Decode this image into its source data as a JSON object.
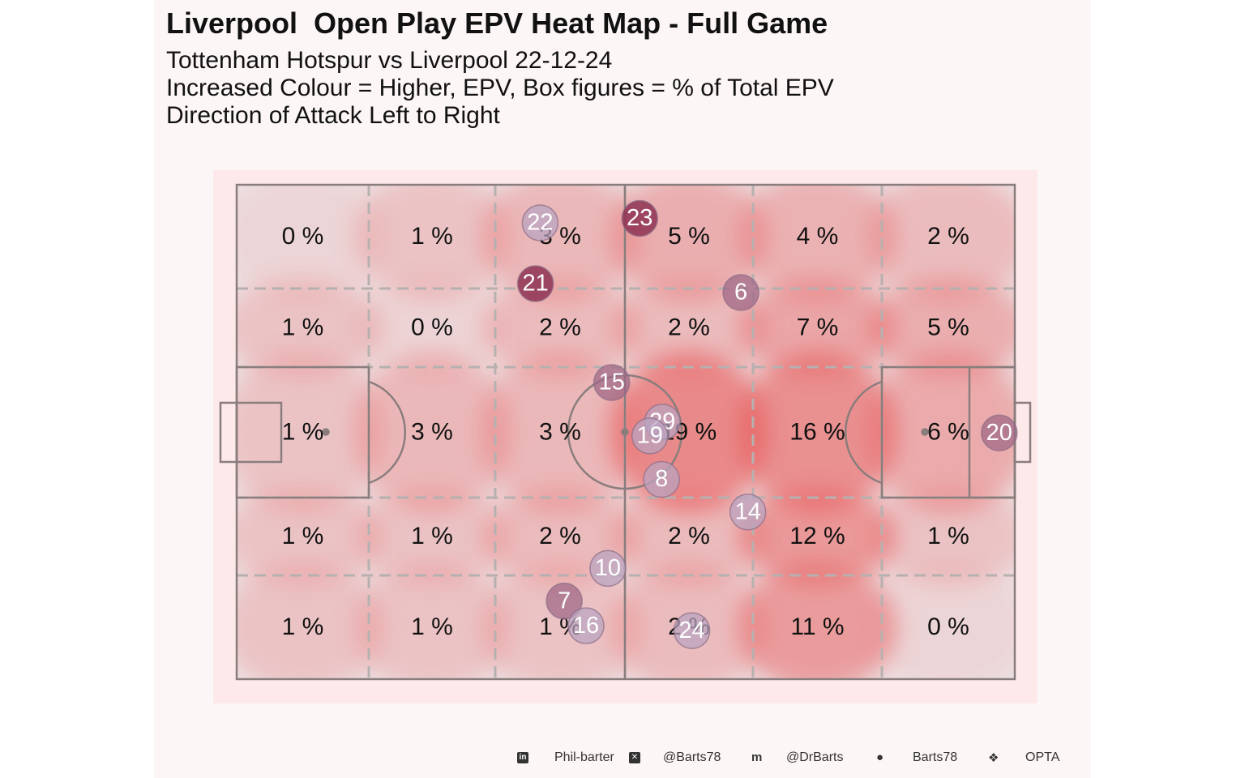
{
  "header": {
    "title": "Liverpool  Open Play EPV Heat Map - Full Game",
    "subtitle_1": "Tottenham Hotspur vs Liverpool 22-12-24",
    "subtitle_2": "Increased Colour = Higher, EPV, Box figures = % of Total EPV",
    "subtitle_3": "Direction of Attack Left to Right"
  },
  "chart_data": {
    "type": "heatmap",
    "grid_columns": 6,
    "grid_rows": 5,
    "zone_labels": [
      [
        "0 %",
        "1 %",
        "3 %",
        "5 %",
        "4 %",
        "2 %"
      ],
      [
        "1 %",
        "0 %",
        "2 %",
        "2 %",
        "7 %",
        "5 %"
      ],
      [
        "1 %",
        "3 %",
        "3 %",
        "19 %",
        "16 %",
        "6 %"
      ],
      [
        "1 %",
        "1 %",
        "2 %",
        "2 %",
        "12 %",
        "1 %"
      ],
      [
        "1 %",
        "1 %",
        "1 %",
        "2 %",
        "11 %",
        "0 %"
      ]
    ],
    "zone_epv_percent": [
      [
        0,
        1,
        3,
        5,
        4,
        2
      ],
      [
        1,
        0,
        2,
        2,
        7,
        5
      ],
      [
        1,
        3,
        3,
        19,
        16,
        6
      ],
      [
        1,
        1,
        2,
        2,
        12,
        1
      ],
      [
        1,
        1,
        1,
        2,
        11,
        0
      ]
    ],
    "players": [
      {
        "number": "22",
        "x": 39.0,
        "y": 92.3,
        "shade": "light"
      },
      {
        "number": "23",
        "x": 51.8,
        "y": 93.2,
        "shade": "dark"
      },
      {
        "number": "21",
        "x": 38.4,
        "y": 80.0,
        "shade": "dark"
      },
      {
        "number": "6",
        "x": 64.8,
        "y": 78.2,
        "shade": "medium"
      },
      {
        "number": "15",
        "x": 48.2,
        "y": 60.0,
        "shade": "medium"
      },
      {
        "number": "29",
        "x": 54.7,
        "y": 52.0,
        "shade": "light"
      },
      {
        "number": "19",
        "x": 53.1,
        "y": 49.2,
        "shade": "light"
      },
      {
        "number": "20",
        "x": 98.0,
        "y": 49.8,
        "shade": "medium"
      },
      {
        "number": "8",
        "x": 54.6,
        "y": 40.4,
        "shade": "light"
      },
      {
        "number": "14",
        "x": 65.7,
        "y": 33.8,
        "shade": "light"
      },
      {
        "number": "10",
        "x": 47.7,
        "y": 22.4,
        "shade": "light"
      },
      {
        "number": "7",
        "x": 42.1,
        "y": 15.8,
        "shade": "medium"
      },
      {
        "number": "16",
        "x": 44.9,
        "y": 10.8,
        "shade": "light"
      },
      {
        "number": "24",
        "x": 58.5,
        "y": 9.8,
        "shade": "light"
      }
    ],
    "direction_of_attack": "left to right"
  },
  "colors": {
    "background": "#fdf6f6",
    "heat_base": "#fbe3e3",
    "heat_high": "#e85a5a",
    "pitch_lines": "#8a7d7d",
    "zone_lines": "#b7b0b0",
    "player_dark": "#8e3354",
    "player_medium": "#9d6685",
    "player_light": "#b8a3c0"
  },
  "footer": {
    "items": [
      {
        "icon": "linkedin-icon",
        "label": "Phil-barter"
      },
      {
        "icon": "x-twitter-icon",
        "label": "@Barts78"
      },
      {
        "icon": "mastodon-icon",
        "label": "@DrBarts"
      },
      {
        "icon": "github-icon",
        "label": "Barts78"
      },
      {
        "icon": "dropbox-icon",
        "label": "OPTA"
      }
    ]
  }
}
